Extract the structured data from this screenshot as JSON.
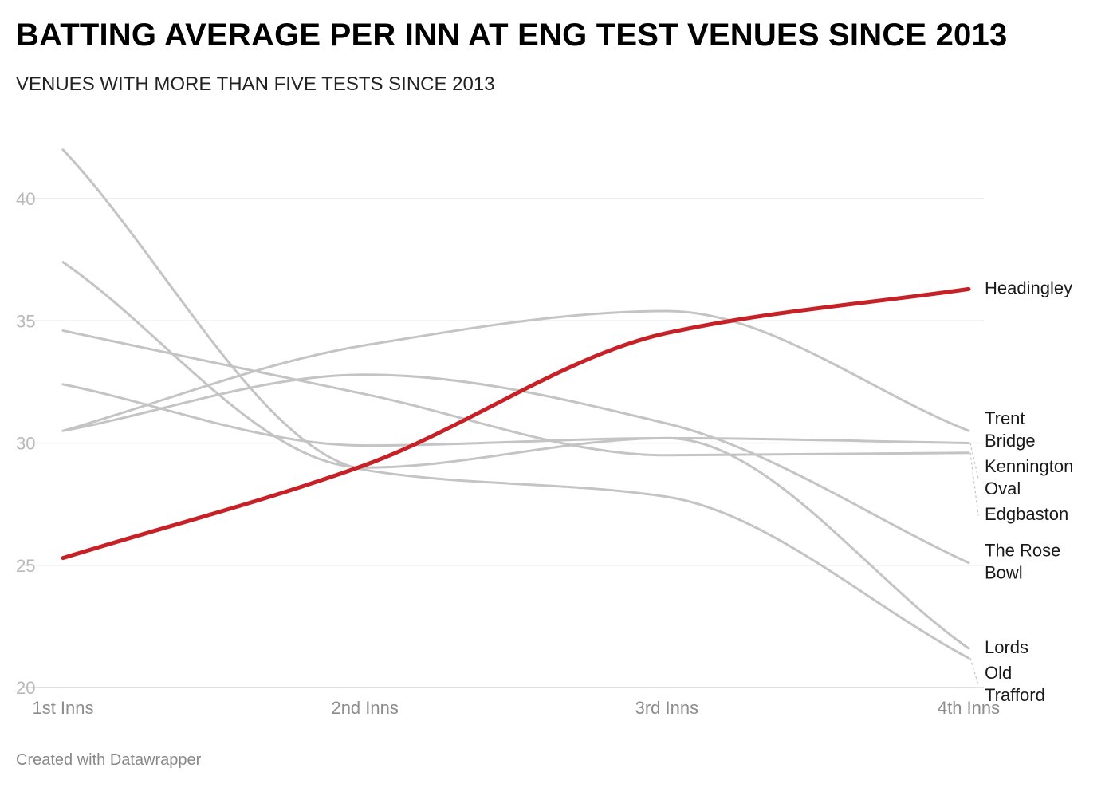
{
  "title": "BATTING AVERAGE PER INN AT ENG TEST VENUES SINCE 2013",
  "subtitle": "VENUES WITH MORE THAN FIVE TESTS SINCE 2013",
  "footer": "Created with Datawrapper",
  "colors": {
    "highlight": "#c62127",
    "muted": "#c4c4c4",
    "grid": "#e2e2e2"
  },
  "chart_data": {
    "type": "line",
    "title": "BATTING AVERAGE PER INN AT ENG TEST VENUES SINCE 2013",
    "subtitle": "VENUES WITH MORE THAN FIVE TESTS SINCE 2013",
    "categories": [
      "1st Inns",
      "2nd Inns",
      "3rd Inns",
      "4th Inns"
    ],
    "xlabel": "",
    "ylabel": "",
    "ylim": [
      20,
      42
    ],
    "yticks": [
      20,
      25,
      30,
      35,
      40
    ],
    "grid": true,
    "series": [
      {
        "name": "Headingley",
        "label_lines": [
          "Headingley"
        ],
        "highlight": true,
        "values": [
          25.3,
          29.1,
          34.5,
          36.3
        ]
      },
      {
        "name": "Trent Bridge",
        "label_lines": [
          "Trent",
          "Bridge"
        ],
        "highlight": false,
        "values": [
          30.5,
          34.0,
          35.4,
          30.5
        ]
      },
      {
        "name": "Kennington Oval",
        "label_lines": [
          "Kennington",
          "Oval"
        ],
        "highlight": false,
        "values": [
          32.4,
          29.9,
          30.2,
          30.0
        ]
      },
      {
        "name": "Edgbaston",
        "label_lines": [
          "Edgbaston"
        ],
        "highlight": false,
        "values": [
          34.6,
          32.0,
          29.5,
          29.6
        ]
      },
      {
        "name": "The Rose Bowl",
        "label_lines": [
          "The Rose",
          "Bowl"
        ],
        "highlight": false,
        "values": [
          30.5,
          32.8,
          30.8,
          25.1
        ]
      },
      {
        "name": "Lords",
        "label_lines": [
          "Lords"
        ],
        "highlight": false,
        "values": [
          37.4,
          29.0,
          30.2,
          21.6
        ]
      },
      {
        "name": "Old Trafford",
        "label_lines": [
          "Old",
          "Trafford"
        ],
        "highlight": false,
        "values": [
          42.0,
          28.9,
          27.8,
          21.2
        ]
      }
    ]
  }
}
